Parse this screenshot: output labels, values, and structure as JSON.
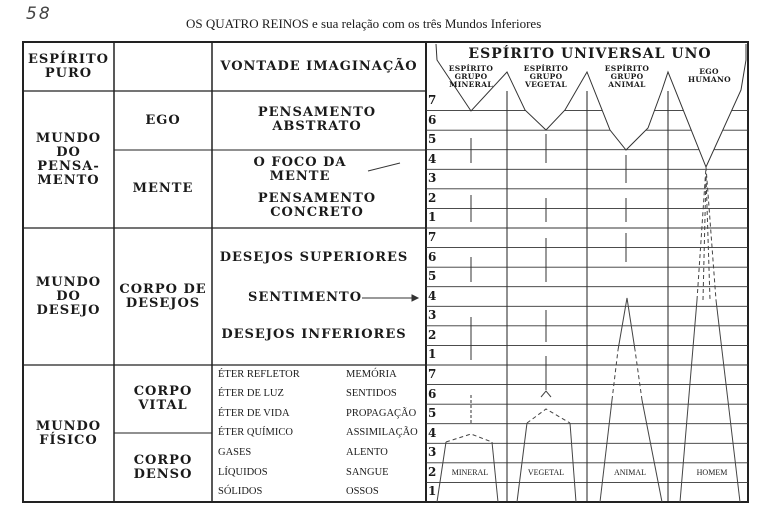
{
  "page_number": "58",
  "title": "OS QUATRO REINOS e sua relação com os três Mundos Inferiores",
  "header": {
    "col1": "ESPÍRITO PURO",
    "col3": "VONTADE IMAGINAÇÃO",
    "chart_title": "ESPÍRITO UNIVERSAL UNO",
    "spirits": [
      "ESPÍRITO GRUPO MINERAL",
      "ESPÍRITO GRUPO VEGETAL",
      "ESPÍRITO GRUPO ANIMAL",
      "EGO HUMANO"
    ]
  },
  "worlds": [
    {
      "name": "MUNDO DO PENSA- MENTO",
      "bodies": [
        "EGO",
        "MENTE"
      ],
      "items": [
        "PENSAMENTO ABSTRATO",
        "O FOCO DA MENTE",
        "PENSAMENTO CONCRETO"
      ]
    },
    {
      "name": "MUNDO DO DESEJO",
      "bodies": [
        "CORPO DE DESEJOS"
      ],
      "items": [
        "DESEJOS SUPERIORES",
        "SENTIMENTO",
        "DESEJOS INFERIORES"
      ]
    },
    {
      "name": "MUNDO FÍSICO",
      "bodies": [
        "CORPO VITAL",
        "CORPO DENSO"
      ],
      "substances": [
        "ÉTER REFLETOR",
        "ÉTER DE LUZ",
        "ÉTER DE VIDA",
        "ÉTER QUÍMICO",
        "GASES",
        "LÍQUIDOS",
        "SÓLIDOS"
      ],
      "functions": [
        "MEMÓRIA",
        "SENTIDOS",
        "PROPAGAÇÃO",
        "ASSIMILAÇÃO",
        "ALENTO",
        "SANGUE",
        "OSSOS"
      ]
    }
  ],
  "levels": [
    "7",
    "6",
    "5",
    "4",
    "3",
    "2",
    "1"
  ],
  "kingdoms": [
    "MINERAL",
    "VEGETAL",
    "ANIMAL",
    "HOMEM"
  ]
}
